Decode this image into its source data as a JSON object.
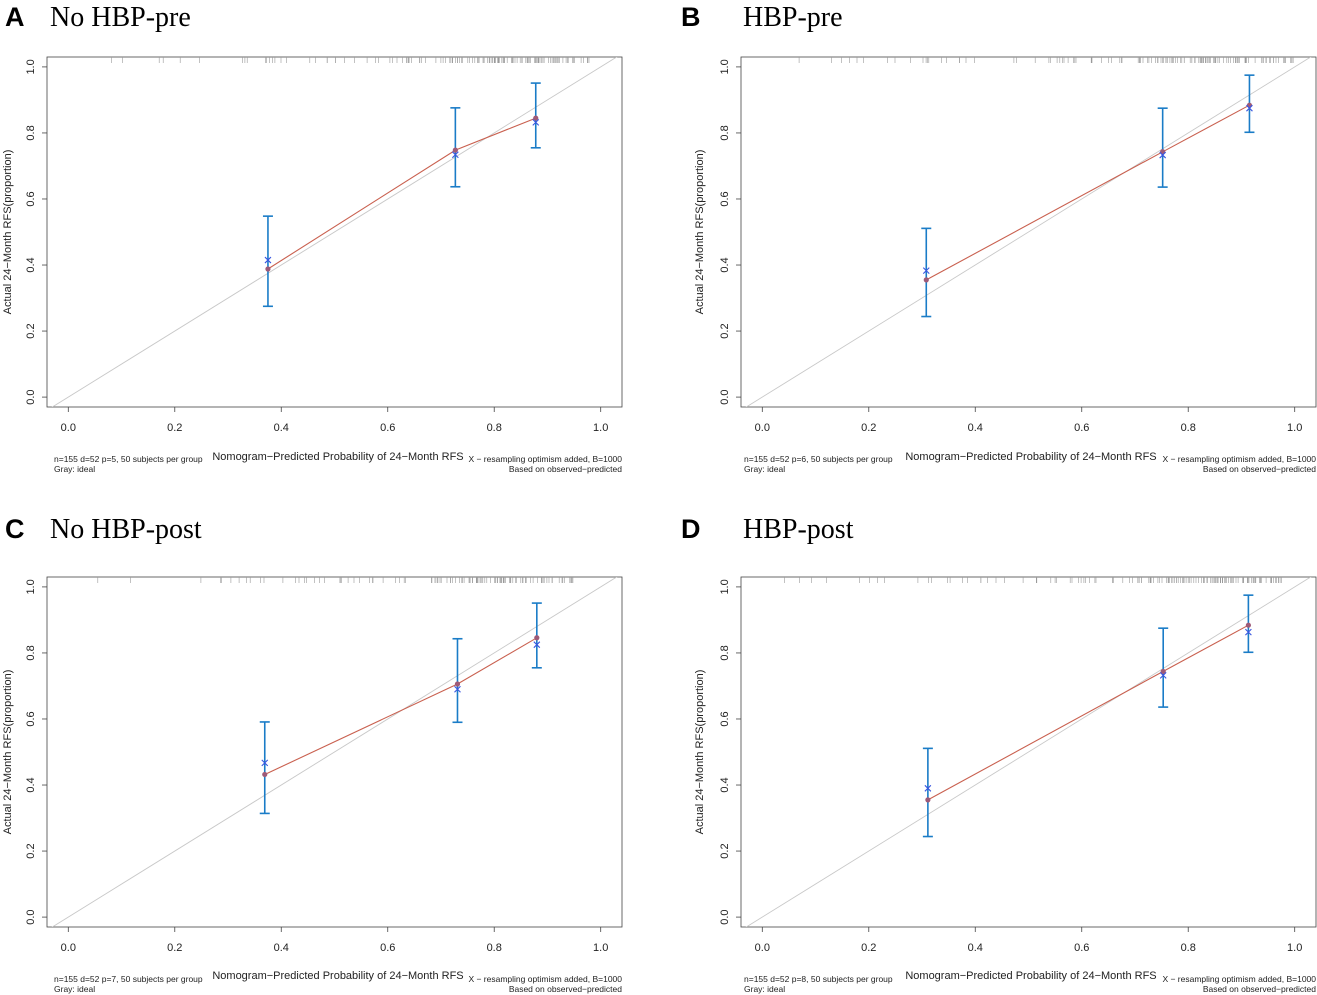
{
  "figure": {
    "colors": {
      "apparent": "#c9604f",
      "bias_corrected": "#3a56e0",
      "error_bar": "#1a7cc7",
      "ideal": "#c8c8c8",
      "point": "#9e5a78",
      "rug": "#9a9a9a",
      "frame": "#444444"
    }
  },
  "chart_data": [
    {
      "letter": "A",
      "title": "No HBP-pre",
      "type": "line",
      "xlabel": "Nomogram−Predicted Probability of 24−Month RFS",
      "ylabel": "Actual 24−Month RFS(proportion)",
      "xlim": [
        -0.04,
        1.04
      ],
      "ylim": [
        -0.03,
        1.03
      ],
      "x_ticks": [
        "0.0",
        "0.2",
        "0.4",
        "0.6",
        "0.8",
        "1.0"
      ],
      "y_ticks": [
        "0.0",
        "0.2",
        "0.4",
        "0.6",
        "0.8",
        "1.0"
      ],
      "groups": [
        {
          "x": 0.375,
          "observed": 0.388,
          "corrected": 0.415,
          "lower": 0.275,
          "upper": 0.548
        },
        {
          "x": 0.727,
          "observed": 0.748,
          "corrected": 0.734,
          "lower": 0.637,
          "upper": 0.876
        },
        {
          "x": 0.878,
          "observed": 0.845,
          "corrected": 0.832,
          "lower": 0.755,
          "upper": 0.951
        }
      ],
      "rug": [
        [
          0.06,
          0.36,
          9
        ],
        [
          0.36,
          0.46,
          8
        ],
        [
          0.46,
          0.6,
          10
        ],
        [
          0.6,
          0.7,
          16
        ],
        [
          0.7,
          0.8,
          30
        ],
        [
          0.8,
          0.88,
          34
        ],
        [
          0.88,
          0.98,
          30
        ]
      ],
      "footnote_left_1": "n=155 d=52 p=5, 50 subjects per group",
      "footnote_left_2": "Gray: ideal",
      "footnote_right_1": "X − resampling optimism added, B=1000",
      "footnote_right_2": "Based on observed−predicted"
    },
    {
      "letter": "B",
      "title": "HBP-pre",
      "type": "line",
      "xlabel": "Nomogram−Predicted Probability of 24−Month RFS",
      "ylabel": "Actual 24−Month RFS(proportion)",
      "xlim": [
        -0.04,
        1.04
      ],
      "ylim": [
        -0.03,
        1.03
      ],
      "x_ticks": [
        "0.0",
        "0.2",
        "0.4",
        "0.6",
        "0.8",
        "1.0"
      ],
      "y_ticks": [
        "0.0",
        "0.2",
        "0.4",
        "0.6",
        "0.8",
        "1.0"
      ],
      "groups": [
        {
          "x": 0.308,
          "observed": 0.355,
          "corrected": 0.383,
          "lower": 0.244,
          "upper": 0.511
        },
        {
          "x": 0.752,
          "observed": 0.743,
          "corrected": 0.733,
          "lower": 0.636,
          "upper": 0.875
        },
        {
          "x": 0.915,
          "observed": 0.884,
          "corrected": 0.875,
          "lower": 0.802,
          "upper": 0.975
        }
      ],
      "rug": [
        [
          0.04,
          0.3,
          9
        ],
        [
          0.3,
          0.5,
          12
        ],
        [
          0.5,
          0.7,
          20
        ],
        [
          0.7,
          0.8,
          28
        ],
        [
          0.8,
          0.88,
          32
        ],
        [
          0.88,
          1.0,
          34
        ]
      ],
      "footnote_left_1": "n=155 d=52 p=6, 50 subjects per group",
      "footnote_left_2": "Gray: ideal",
      "footnote_right_1": "X − resampling optimism added, B=1000",
      "footnote_right_2": "Based on observed−predicted"
    },
    {
      "letter": "C",
      "title": "No HBP-post",
      "type": "line",
      "xlabel": "Nomogram−Predicted Probability of 24−Month RFS",
      "ylabel": "Actual 24−Month RFS(proportion)",
      "xlim": [
        -0.04,
        1.04
      ],
      "ylim": [
        -0.03,
        1.03
      ],
      "x_ticks": [
        "0.0",
        "0.2",
        "0.4",
        "0.6",
        "0.8",
        "1.0"
      ],
      "y_ticks": [
        "0.0",
        "0.2",
        "0.4",
        "0.6",
        "0.8",
        "1.0"
      ],
      "groups": [
        {
          "x": 0.369,
          "observed": 0.432,
          "corrected": 0.467,
          "lower": 0.314,
          "upper": 0.591
        },
        {
          "x": 0.731,
          "observed": 0.706,
          "corrected": 0.69,
          "lower": 0.59,
          "upper": 0.843
        },
        {
          "x": 0.88,
          "observed": 0.846,
          "corrected": 0.825,
          "lower": 0.755,
          "upper": 0.951
        }
      ],
      "rug": [
        [
          0.04,
          0.36,
          9
        ],
        [
          0.36,
          0.5,
          10
        ],
        [
          0.5,
          0.66,
          14
        ],
        [
          0.66,
          0.76,
          22
        ],
        [
          0.76,
          0.88,
          38
        ],
        [
          0.88,
          0.95,
          22
        ]
      ],
      "footnote_left_1": "n=155 d=52 p=7, 50 subjects per group",
      "footnote_left_2": "Gray: ideal",
      "footnote_right_1": "X − resampling optimism added, B=1000",
      "footnote_right_2": "Based on observed−predicted"
    },
    {
      "letter": "D",
      "title": "HBP-post",
      "type": "line",
      "xlabel": "Nomogram−Predicted Probability of 24−Month RFS",
      "ylabel": "Actual 24−Month RFS(proportion)",
      "xlim": [
        -0.04,
        1.04
      ],
      "ylim": [
        -0.03,
        1.03
      ],
      "x_ticks": [
        "0.0",
        "0.2",
        "0.4",
        "0.6",
        "0.8",
        "1.0"
      ],
      "y_ticks": [
        "0.0",
        "0.2",
        "0.4",
        "0.6",
        "0.8",
        "1.0"
      ],
      "groups": [
        {
          "x": 0.311,
          "observed": 0.355,
          "corrected": 0.39,
          "lower": 0.244,
          "upper": 0.511
        },
        {
          "x": 0.753,
          "observed": 0.744,
          "corrected": 0.732,
          "lower": 0.636,
          "upper": 0.875
        },
        {
          "x": 0.913,
          "observed": 0.884,
          "corrected": 0.863,
          "lower": 0.802,
          "upper": 0.975
        }
      ],
      "rug": [
        [
          0.04,
          0.3,
          9
        ],
        [
          0.3,
          0.5,
          12
        ],
        [
          0.5,
          0.7,
          20
        ],
        [
          0.7,
          0.8,
          30
        ],
        [
          0.8,
          0.9,
          36
        ],
        [
          0.9,
          0.98,
          30
        ]
      ],
      "footnote_left_1": "n=155 d=52 p=8, 50 subjects per group",
      "footnote_left_2": "Gray: ideal",
      "footnote_right_1": "X − resampling optimism added, B=1000",
      "footnote_right_2": "Based on observed−predicted"
    }
  ]
}
